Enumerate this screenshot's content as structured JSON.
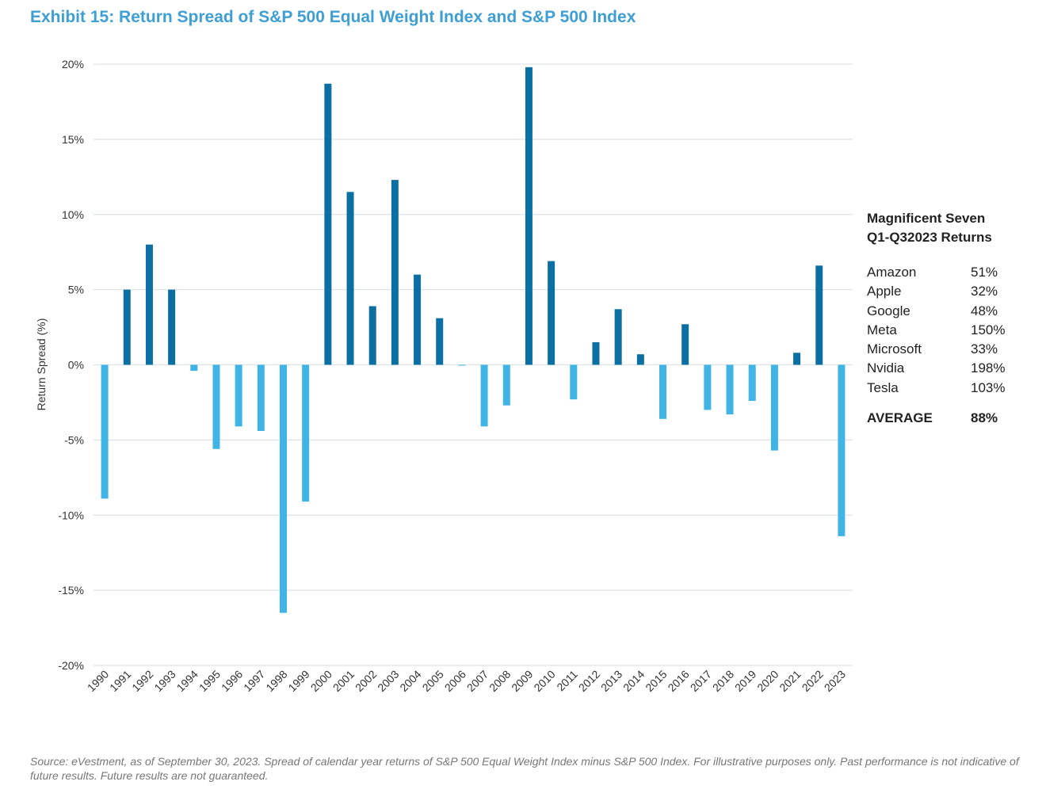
{
  "title": "Exhibit 15: Return Spread of S&P 500 Equal Weight Index and S&P 500 Index",
  "chart_data": {
    "type": "bar",
    "title": "Exhibit 15: Return Spread of S&P 500 Equal Weight Index and S&P 500 Index",
    "xlabel": "",
    "ylabel": "Return Spread (%)",
    "ylim": [
      -20,
      20
    ],
    "yticks": [
      20,
      15,
      10,
      5,
      0,
      -5,
      -10,
      -15,
      -20
    ],
    "ytick_labels": [
      "20%",
      "15%",
      "10%",
      "5%",
      "0%",
      "-5%",
      "-10%",
      "-15%",
      "-20%"
    ],
    "grid": true,
    "colors": {
      "positive": "#0b6fa3",
      "negative": "#3fb4e5"
    },
    "categories": [
      "1990",
      "1991",
      "1992",
      "1993",
      "1994",
      "1995",
      "1996",
      "1997",
      "1998",
      "1999",
      "2000",
      "2001",
      "2002",
      "2003",
      "2004",
      "2005",
      "2006",
      "2007",
      "2008",
      "2009",
      "2010",
      "2011",
      "2012",
      "2013",
      "2014",
      "2015",
      "2016",
      "2017",
      "2018",
      "2019",
      "2020",
      "2021",
      "2022",
      "2023"
    ],
    "values": [
      -8.9,
      5.0,
      8.0,
      5.0,
      -0.4,
      -5.6,
      -4.1,
      -4.4,
      -16.5,
      -9.1,
      18.7,
      11.5,
      3.9,
      12.3,
      6.0,
      3.1,
      -0.05,
      -4.1,
      -2.7,
      19.8,
      6.9,
      -2.3,
      1.5,
      3.7,
      0.7,
      -3.6,
      2.7,
      -3.0,
      -3.3,
      -2.4,
      -5.7,
      0.8,
      6.6,
      -11.4
    ]
  },
  "side_table": {
    "header": [
      "Magnificent  Seven",
      "Q1-Q32023  Returns"
    ],
    "rows": [
      {
        "name": "Amazon",
        "value": "51%"
      },
      {
        "name": "Apple",
        "value": "32%"
      },
      {
        "name": "Google",
        "value": "48%"
      },
      {
        "name": "Meta",
        "value": "150%"
      },
      {
        "name": "Microsoft",
        "value": "33%"
      },
      {
        "name": "Nvidia",
        "value": "198%"
      },
      {
        "name": "Tesla",
        "value": "103%"
      }
    ],
    "average": {
      "name": "AVERAGE",
      "value": "88%"
    }
  },
  "source": "Source: eVestment, as of September 30, 2023. Spread of calendar year returns of S&P 500 Equal Weight Index minus S&P 500 Index. For illustrative purposes only. Past performance is not indicative of future results. Future results are not guaranteed."
}
